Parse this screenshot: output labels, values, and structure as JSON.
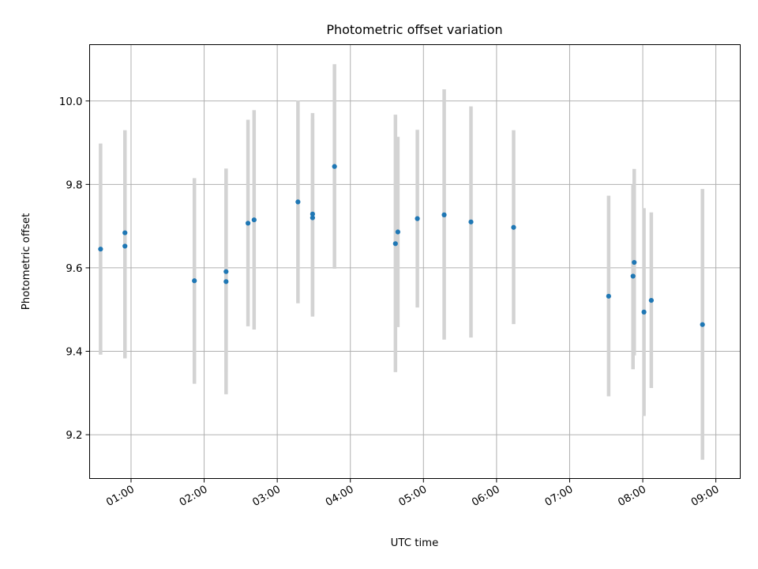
{
  "chart_data": {
    "type": "scatter",
    "title": "Photometric offset variation",
    "xlabel": "UTC time",
    "ylabel": "Photometric offset",
    "xlim": [
      "00:26",
      "09:20"
    ],
    "ylim": [
      9.095,
      10.135
    ],
    "xticks": [
      "01:00",
      "02:00",
      "03:00",
      "04:00",
      "05:00",
      "06:00",
      "07:00",
      "08:00",
      "09:00"
    ],
    "yticks": [
      9.2,
      9.4,
      9.6,
      9.8,
      10.0
    ],
    "ytick_labels": [
      "9.2",
      "9.4",
      "9.6",
      "9.8",
      "10.0"
    ],
    "grid": true,
    "marker_color": "#1f77b4",
    "errorbar_color": "#d3d3d3",
    "points": [
      {
        "t": "00:35",
        "y": 9.645,
        "lo": 9.392,
        "hi": 9.898
      },
      {
        "t": "00:55",
        "y": 9.652,
        "lo": 9.383,
        "hi": 9.93
      },
      {
        "t": "00:55",
        "y": 9.684,
        "lo": 9.44,
        "hi": 9.928
      },
      {
        "t": "01:52",
        "y": 9.569,
        "lo": 9.322,
        "hi": 9.815
      },
      {
        "t": "02:18",
        "y": 9.567,
        "lo": 9.297,
        "hi": 9.838
      },
      {
        "t": "02:18",
        "y": 9.591,
        "lo": 9.35,
        "hi": 9.833
      },
      {
        "t": "02:36",
        "y": 9.707,
        "lo": 9.46,
        "hi": 9.955
      },
      {
        "t": "02:41",
        "y": 9.715,
        "lo": 9.452,
        "hi": 9.978
      },
      {
        "t": "03:17",
        "y": 9.758,
        "lo": 9.515,
        "hi": 10.001
      },
      {
        "t": "03:29",
        "y": 9.72,
        "lo": 9.483,
        "hi": 9.957
      },
      {
        "t": "03:29",
        "y": 9.729,
        "lo": 9.487,
        "hi": 9.971
      },
      {
        "t": "03:47",
        "y": 9.843,
        "lo": 9.598,
        "hi": 10.088
      },
      {
        "t": "04:37",
        "y": 9.658,
        "lo": 9.35,
        "hi": 9.967
      },
      {
        "t": "04:39",
        "y": 9.686,
        "lo": 9.458,
        "hi": 9.914
      },
      {
        "t": "04:55",
        "y": 9.718,
        "lo": 9.505,
        "hi": 9.931
      },
      {
        "t": "05:17",
        "y": 9.727,
        "lo": 9.428,
        "hi": 10.028
      },
      {
        "t": "05:39",
        "y": 9.71,
        "lo": 9.433,
        "hi": 9.987
      },
      {
        "t": "06:14",
        "y": 9.697,
        "lo": 9.465,
        "hi": 9.93
      },
      {
        "t": "07:32",
        "y": 9.532,
        "lo": 9.292,
        "hi": 9.773
      },
      {
        "t": "07:52",
        "y": 9.58,
        "lo": 9.357,
        "hi": 9.8
      },
      {
        "t": "07:53",
        "y": 9.613,
        "lo": 9.39,
        "hi": 9.837
      },
      {
        "t": "08:01",
        "y": 9.494,
        "lo": 9.245,
        "hi": 9.743
      },
      {
        "t": "08:07",
        "y": 9.522,
        "lo": 9.312,
        "hi": 9.733
      },
      {
        "t": "08:49",
        "y": 9.464,
        "lo": 9.14,
        "hi": 9.789
      }
    ]
  }
}
